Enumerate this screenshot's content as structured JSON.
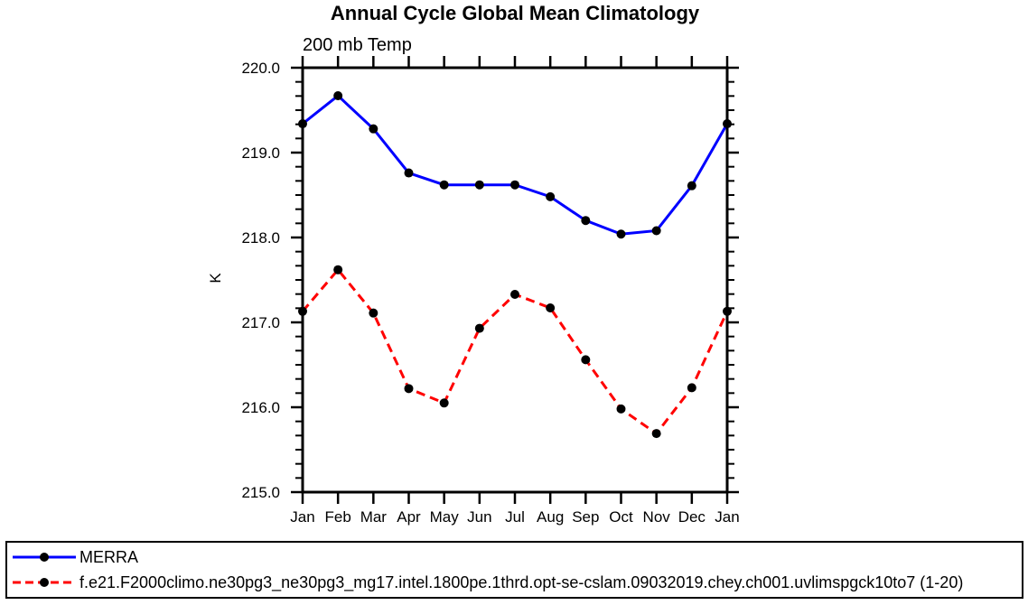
{
  "chart_data": {
    "type": "line",
    "title": "Annual Cycle Global Mean Climatology",
    "subtitle": "200 mb Temp",
    "ylabel": "K",
    "xlabel": "",
    "categories": [
      "Jan",
      "Feb",
      "Mar",
      "Apr",
      "May",
      "Jun",
      "Jul",
      "Aug",
      "Sep",
      "Oct",
      "Nov",
      "Dec",
      "Jan"
    ],
    "ylim": [
      215.0,
      220.0
    ],
    "y_major_step": 1.0,
    "y_minor_per_major": 5,
    "ytick_labels": [
      "215.0",
      "216.0",
      "217.0",
      "218.0",
      "219.0",
      "220.0"
    ],
    "grid": false,
    "legend_position": "bottom-outside-box",
    "axis_color": "#000000",
    "marker": "filled-circle",
    "marker_color": "#000000",
    "series": [
      {
        "name": "MERRA",
        "color": "#0000ff",
        "style": "solid",
        "values": [
          219.34,
          219.67,
          219.28,
          218.76,
          218.62,
          218.62,
          218.62,
          218.48,
          218.2,
          218.04,
          218.08,
          218.61,
          219.34
        ]
      },
      {
        "name": "f.e21.F2000climo.ne30pg3_ne30pg3_mg17.intel.1800pe.1thrd.opt-se-cslam.09032019.chey.ch001.uvlimspgck10to7 (1-20)",
        "color": "#ff0000",
        "style": "dashed",
        "values": [
          217.13,
          217.62,
          217.11,
          216.22,
          216.05,
          216.93,
          217.33,
          217.17,
          216.56,
          215.98,
          215.69,
          216.23,
          217.13
        ]
      }
    ]
  }
}
